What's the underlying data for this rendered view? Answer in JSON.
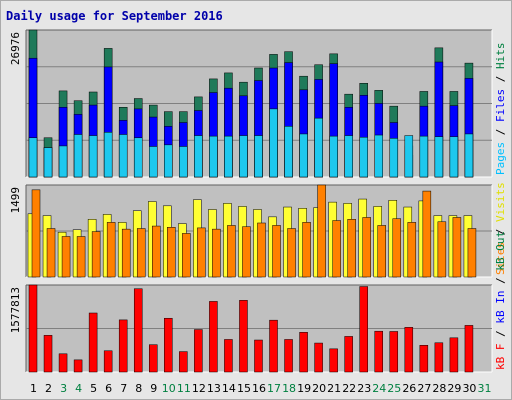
{
  "chart_data": {
    "type": "bar",
    "title": "Daily usage for September 2016",
    "categories": [
      "1",
      "2",
      "3",
      "4",
      "5",
      "6",
      "7",
      "8",
      "9",
      "10",
      "11",
      "12",
      "13",
      "14",
      "15",
      "16",
      "17",
      "18",
      "19",
      "20",
      "21",
      "22",
      "23",
      "24",
      "25",
      "26",
      "27",
      "28",
      "29",
      "30",
      "31"
    ],
    "weekend_days": [
      "3",
      "4",
      "10",
      "11",
      "17",
      "18",
      "24",
      "25",
      "31"
    ],
    "panels": [
      {
        "id": "hits",
        "ymax_label": "26976",
        "ymax": 26976,
        "right_label_parts": [
          {
            "text": "Pages",
            "color": "#00c0ff"
          },
          {
            "text": " / ",
            "color": "#000000"
          },
          {
            "text": "Files",
            "color": "#0000ff"
          },
          {
            "text": " / ",
            "color": "#000000"
          },
          {
            "text": "Hits",
            "color": "#008040"
          }
        ],
        "series": [
          {
            "name": "Hits",
            "color": "#1f7a5a",
            "values": [
              26976,
              7200,
              15800,
              14000,
              15600,
              23600,
              12800,
              14400,
              13200,
              12000,
              12000,
              14700,
              18000,
              19100,
              17400,
              20000,
              22500,
              23000,
              18500,
              20600,
              22600,
              15200,
              17200,
              15900,
              13000,
              5700,
              15700,
              23700,
              15700,
              20900,
              null
            ]
          },
          {
            "name": "Files",
            "color": "#0000ff",
            "values": [
              21800,
              5400,
              12800,
              11500,
              13200,
              20200,
              10400,
              12500,
              11000,
              9300,
              10000,
              12200,
              15500,
              16300,
              14900,
              17700,
              20000,
              21000,
              16000,
              17900,
              20800,
              12800,
              15000,
              13500,
              10000,
              4000,
              13000,
              21100,
              13100,
              18100,
              null
            ]
          },
          {
            "name": "Pages",
            "color": "#1ec8ee",
            "values": [
              7200,
              5400,
              5700,
              7800,
              7600,
              8200,
              7800,
              7200,
              5600,
              5900,
              5600,
              7600,
              7500,
              7500,
              7600,
              7600,
              12500,
              9300,
              7900,
              10800,
              7500,
              7600,
              7300,
              7700,
              7100,
              7600,
              7500,
              7400,
              7400,
              7900,
              null
            ]
          }
        ]
      },
      {
        "id": "visits",
        "ymax_label": "1499",
        "ymax": 1499,
        "right_label_parts": [
          {
            "text": "Sites",
            "color": "#ff8000"
          },
          {
            "text": " / ",
            "color": "#000000"
          },
          {
            "text": "Visits",
            "color": "#e0e000"
          }
        ],
        "series": [
          {
            "name": "Visits",
            "color": "#ffff33",
            "values": [
              1030,
              1000,
              730,
              770,
              940,
              1020,
              890,
              1080,
              1230,
              1160,
              870,
              1260,
              1100,
              1200,
              1150,
              1100,
              980,
              1140,
              1120,
              1130,
              1220,
              1200,
              1270,
              1150,
              1250,
              1140,
              1240,
              1000,
              1000,
              1000,
              null
            ]
          },
          {
            "name": "Sites",
            "color": "#ff8000",
            "values": [
              1420,
              790,
              660,
              660,
              740,
              890,
              780,
              790,
              830,
              810,
              710,
              800,
              780,
              840,
              820,
              880,
              840,
              790,
              890,
              1499,
              920,
              940,
              970,
              840,
              950,
              890,
              1400,
              900,
              970,
              790,
              null
            ]
          }
        ]
      },
      {
        "id": "kbytes",
        "ymax_label": "1577813",
        "ymax": 1577813,
        "right_label_parts": [
          {
            "text": "kB F",
            "color": "#ff0000"
          },
          {
            "text": " / ",
            "color": "#000000"
          },
          {
            "text": "kB In",
            "color": "#0000ff"
          },
          {
            "text": " / ",
            "color": "#000000"
          },
          {
            "text": "kB Out",
            "color": "#008040"
          }
        ],
        "series": [
          {
            "name": "kB F",
            "color": "#ff0000",
            "values": [
              1577813,
              665000,
              330000,
              220000,
              1070000,
              385000,
              945000,
              1510000,
              495000,
              975000,
              370000,
              770000,
              1280000,
              590000,
              1300000,
              580000,
              940000,
              590000,
              720000,
              525000,
              420000,
              645000,
              1550000,
              740000,
              735000,
              810000,
              485000,
              530000,
              620000,
              845000,
              null
            ]
          }
        ]
      }
    ]
  }
}
